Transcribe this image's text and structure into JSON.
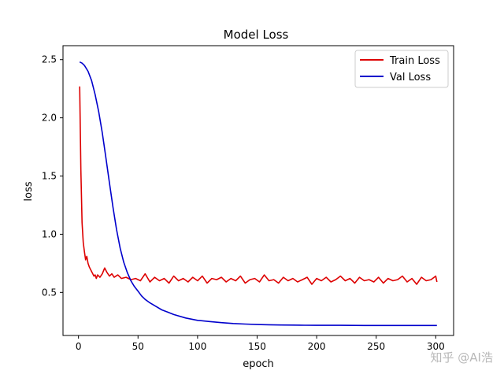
{
  "chart_data": {
    "type": "line",
    "title": "Model Loss",
    "xlabel": "epoch",
    "ylabel": "loss",
    "xlim": [
      -13,
      315
    ],
    "ylim": [
      0.13,
      2.62
    ],
    "xticks": [
      0,
      50,
      100,
      150,
      200,
      250,
      300
    ],
    "yticks": [
      0.5,
      1.0,
      1.5,
      2.0,
      2.5
    ],
    "xtick_labels": [
      "0",
      "50",
      "100",
      "150",
      "200",
      "250",
      "300"
    ],
    "ytick_labels": [
      "0.5",
      "1.0",
      "1.5",
      "2.0",
      "2.5"
    ],
    "legend_position": "top-right",
    "series": [
      {
        "name": "Train Loss",
        "color": "#dd0000",
        "x": [
          1,
          2,
          3,
          4,
          5,
          6,
          7,
          8,
          9,
          10,
          11,
          12,
          13,
          14,
          15,
          16,
          18,
          20,
          22,
          24,
          26,
          28,
          30,
          33,
          36,
          40,
          44,
          48,
          52,
          56,
          60,
          64,
          68,
          72,
          76,
          80,
          84,
          88,
          92,
          96,
          100,
          104,
          108,
          112,
          116,
          120,
          124,
          128,
          132,
          136,
          140,
          144,
          148,
          152,
          156,
          160,
          164,
          168,
          172,
          176,
          180,
          184,
          188,
          192,
          196,
          200,
          204,
          208,
          212,
          216,
          220,
          224,
          228,
          232,
          236,
          240,
          244,
          248,
          252,
          256,
          260,
          264,
          268,
          272,
          276,
          280,
          284,
          288,
          292,
          296,
          300,
          301
        ],
        "values": [
          2.27,
          1.55,
          1.1,
          0.93,
          0.85,
          0.78,
          0.81,
          0.75,
          0.72,
          0.7,
          0.68,
          0.66,
          0.64,
          0.65,
          0.62,
          0.65,
          0.63,
          0.66,
          0.71,
          0.67,
          0.64,
          0.66,
          0.63,
          0.65,
          0.62,
          0.63,
          0.61,
          0.62,
          0.6,
          0.66,
          0.59,
          0.63,
          0.6,
          0.62,
          0.58,
          0.64,
          0.6,
          0.62,
          0.59,
          0.63,
          0.6,
          0.64,
          0.58,
          0.62,
          0.61,
          0.63,
          0.59,
          0.62,
          0.6,
          0.64,
          0.58,
          0.61,
          0.62,
          0.59,
          0.65,
          0.6,
          0.61,
          0.58,
          0.63,
          0.6,
          0.62,
          0.59,
          0.61,
          0.63,
          0.57,
          0.62,
          0.6,
          0.63,
          0.59,
          0.61,
          0.64,
          0.6,
          0.62,
          0.58,
          0.63,
          0.6,
          0.61,
          0.59,
          0.63,
          0.58,
          0.62,
          0.6,
          0.61,
          0.64,
          0.59,
          0.62,
          0.57,
          0.63,
          0.6,
          0.61,
          0.64,
          0.59
        ]
      },
      {
        "name": "Val Loss",
        "color": "#0000cc",
        "x": [
          1,
          3,
          5,
          8,
          11,
          14,
          17,
          20,
          23,
          26,
          29,
          32,
          35,
          38,
          41,
          44,
          47,
          50,
          53,
          56,
          60,
          65,
          70,
          75,
          80,
          90,
          100,
          110,
          120,
          130,
          140,
          150,
          160,
          170,
          180,
          190,
          200,
          220,
          240,
          260,
          280,
          301
        ],
        "values": [
          2.48,
          2.47,
          2.45,
          2.4,
          2.32,
          2.2,
          2.05,
          1.87,
          1.66,
          1.44,
          1.23,
          1.04,
          0.88,
          0.76,
          0.67,
          0.6,
          0.55,
          0.51,
          0.47,
          0.44,
          0.41,
          0.38,
          0.35,
          0.33,
          0.31,
          0.28,
          0.26,
          0.25,
          0.24,
          0.233,
          0.228,
          0.224,
          0.222,
          0.22,
          0.219,
          0.218,
          0.217,
          0.217,
          0.216,
          0.216,
          0.216,
          0.216
        ]
      }
    ]
  },
  "watermark": "知乎 @AI浩"
}
